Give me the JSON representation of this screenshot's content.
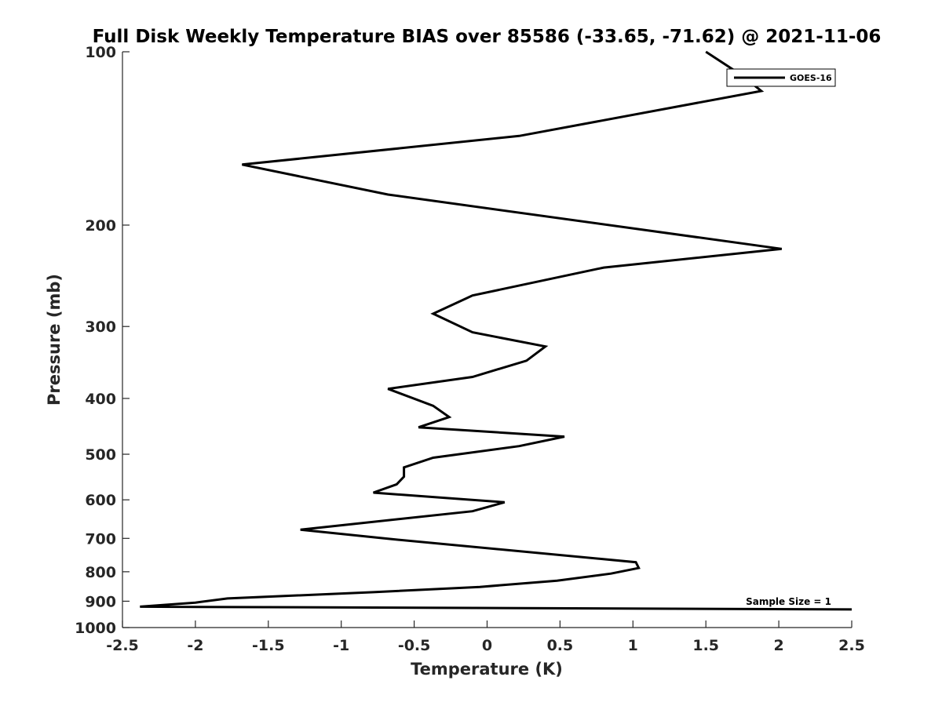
{
  "chart_data": {
    "type": "line",
    "title": "Full Disk Weekly Temperature BIAS over 85586 (-33.65, -71.62) @ 2021-11-06",
    "xlabel": "Temperature (K)",
    "ylabel": "Pressure (mb)",
    "xlim": [
      -2.5,
      2.5
    ],
    "ylim": [
      1000,
      100
    ],
    "y_scale": "log",
    "x_ticks": [
      -2.5,
      -2,
      -1.5,
      -1,
      -0.5,
      0,
      0.5,
      1,
      1.5,
      2,
      2.5
    ],
    "x_tick_labels": [
      "-2.5",
      "-2",
      "-1.5",
      "-1",
      "-0.5",
      "0",
      "0.5",
      "1",
      "1.5",
      "2",
      "2.5"
    ],
    "y_ticks": [
      100,
      200,
      300,
      400,
      500,
      600,
      700,
      800,
      900,
      1000
    ],
    "y_tick_labels": [
      "100",
      "200",
      "300",
      "400",
      "500",
      "600",
      "700",
      "800",
      "900",
      "1000"
    ],
    "grid": false,
    "legend_position": "top-right",
    "annotation": "Sample Size = 1",
    "series": [
      {
        "name": "GOES-16",
        "color": "#000000",
        "points": [
          {
            "x": 1.5,
            "p": 100
          },
          {
            "x": 1.75,
            "p": 110
          },
          {
            "x": 1.88,
            "p": 117
          },
          {
            "x": 0.22,
            "p": 140
          },
          {
            "x": -1.68,
            "p": 157
          },
          {
            "x": -0.68,
            "p": 177
          },
          {
            "x": 2.02,
            "p": 220
          },
          {
            "x": 0.8,
            "p": 237
          },
          {
            "x": -0.1,
            "p": 265
          },
          {
            "x": -0.37,
            "p": 285
          },
          {
            "x": -0.1,
            "p": 307
          },
          {
            "x": 0.4,
            "p": 325
          },
          {
            "x": 0.27,
            "p": 344
          },
          {
            "x": -0.1,
            "p": 367
          },
          {
            "x": -0.68,
            "p": 385
          },
          {
            "x": -0.37,
            "p": 412
          },
          {
            "x": -0.26,
            "p": 431
          },
          {
            "x": -0.47,
            "p": 449
          },
          {
            "x": 0.53,
            "p": 466
          },
          {
            "x": 0.22,
            "p": 484
          },
          {
            "x": -0.37,
            "p": 507
          },
          {
            "x": -0.57,
            "p": 527
          },
          {
            "x": -0.57,
            "p": 547
          },
          {
            "x": -0.62,
            "p": 564
          },
          {
            "x": -0.78,
            "p": 583
          },
          {
            "x": 0.12,
            "p": 606
          },
          {
            "x": -0.1,
            "p": 628
          },
          {
            "x": -1.28,
            "p": 676
          },
          {
            "x": -0.68,
            "p": 701
          },
          {
            "x": 1.02,
            "p": 770
          },
          {
            "x": 1.04,
            "p": 788
          },
          {
            "x": 0.85,
            "p": 806
          },
          {
            "x": 0.48,
            "p": 829
          },
          {
            "x": -0.05,
            "p": 850
          },
          {
            "x": -0.78,
            "p": 868
          },
          {
            "x": -1.78,
            "p": 890
          },
          {
            "x": -2.0,
            "p": 905
          },
          {
            "x": -2.38,
            "p": 920
          },
          {
            "x": 2.5,
            "p": 930
          }
        ]
      }
    ]
  }
}
